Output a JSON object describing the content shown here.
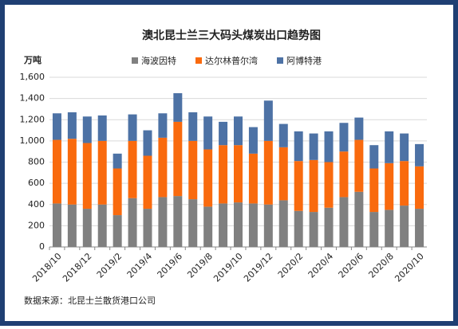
{
  "chart_data": {
    "type": "stacked_bar",
    "title": "澳北昆士兰三大码头煤炭出口趋势图",
    "y_label": "万吨",
    "source": "数据来源：北昆士兰散货港口公司",
    "categories": [
      "2018/10",
      null,
      "2018/12",
      null,
      "2019/2",
      null,
      "2019/4",
      null,
      "2019/6",
      null,
      "2019/8",
      null,
      "2019/10",
      null,
      "2019/12",
      null,
      "2020/2",
      null,
      "2020/4",
      null,
      "2020/6",
      null,
      "2020/8",
      null,
      "2020/10"
    ],
    "series": [
      {
        "name": "海波因特",
        "color": "#808080",
        "values": [
          410,
          400,
          360,
          400,
          300,
          460,
          360,
          470,
          480,
          450,
          380,
          410,
          420,
          410,
          400,
          440,
          340,
          330,
          370,
          470,
          520,
          330,
          350,
          390,
          360
        ]
      },
      {
        "name": "达尔林普尔湾",
        "color": "#f96a0e",
        "values": [
          600,
          620,
          620,
          600,
          440,
          540,
          500,
          560,
          700,
          550,
          540,
          550,
          540,
          470,
          600,
          500,
          470,
          490,
          430,
          430,
          490,
          410,
          440,
          420,
          400
        ]
      },
      {
        "name": "阿博特港",
        "color": "#4d72a5",
        "values": [
          250,
          250,
          250,
          240,
          140,
          250,
          240,
          230,
          270,
          270,
          310,
          220,
          270,
          250,
          380,
          220,
          280,
          250,
          290,
          270,
          210,
          220,
          300,
          260,
          210
        ]
      }
    ],
    "ylim": [
      0,
      1600
    ],
    "yticks": [
      0,
      200,
      400,
      600,
      800,
      {
        "value": 1000,
        "label": "1,000"
      },
      {
        "value": 1200,
        "label": "1,200"
      },
      {
        "value": 1400,
        "label": "1,400"
      },
      {
        "value": 1600,
        "label": "1,600"
      }
    ],
    "grid": true,
    "legend": "top"
  }
}
